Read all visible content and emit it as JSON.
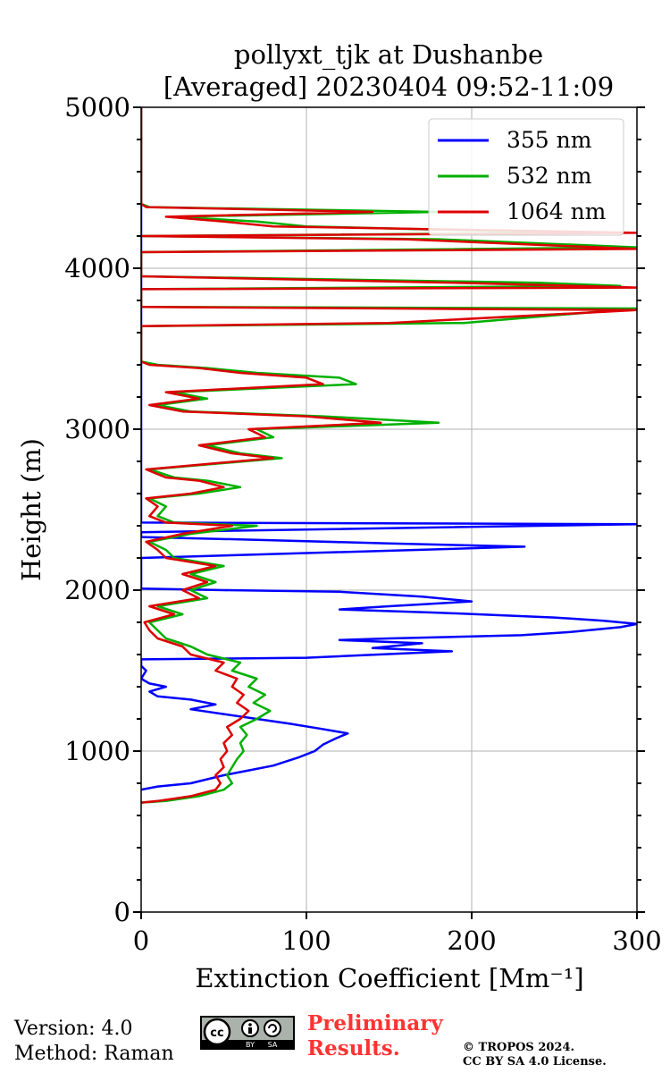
{
  "chart_data": {
    "type": "line",
    "title": "pollyxt_tjk at Dushanbe",
    "subtitle": "[Averaged] 20230404 09:52-11:09",
    "xlabel": "Extinction Coefficient [Mm⁻¹]",
    "ylabel": "Height (m)",
    "xlim": [
      0,
      300
    ],
    "ylim": [
      0,
      5000
    ],
    "xticks": [
      0,
      100,
      200,
      300
    ],
    "yticks": [
      0,
      1000,
      2000,
      3000,
      4000,
      5000
    ],
    "grid": true,
    "legend_position": "top-right",
    "series": [
      {
        "name": "355 nm",
        "color": "#0000ff",
        "points": [
          [
            0,
            760
          ],
          [
            10,
            780
          ],
          [
            30,
            800
          ],
          [
            50,
            850
          ],
          [
            65,
            880
          ],
          [
            80,
            910
          ],
          [
            95,
            960
          ],
          [
            105,
            1000
          ],
          [
            110,
            1040
          ],
          [
            118,
            1080
          ],
          [
            125,
            1110
          ],
          [
            108,
            1140
          ],
          [
            90,
            1170
          ],
          [
            70,
            1200
          ],
          [
            50,
            1230
          ],
          [
            30,
            1260
          ],
          [
            45,
            1290
          ],
          [
            30,
            1320
          ],
          [
            10,
            1340
          ],
          [
            5,
            1370
          ],
          [
            15,
            1400
          ],
          [
            5,
            1420
          ],
          [
            0,
            1450
          ],
          [
            3,
            1500
          ],
          [
            0,
            1530
          ],
          [
            0,
            1570
          ],
          [
            100,
            1580
          ],
          [
            188,
            1620
          ],
          [
            140,
            1640
          ],
          [
            170,
            1670
          ],
          [
            120,
            1690
          ],
          [
            150,
            1700
          ],
          [
            230,
            1720
          ],
          [
            260,
            1740
          ],
          [
            290,
            1770
          ],
          [
            300,
            1790
          ],
          [
            280,
            1810
          ],
          [
            250,
            1830
          ],
          [
            180,
            1860
          ],
          [
            120,
            1880
          ],
          [
            150,
            1900
          ],
          [
            200,
            1930
          ],
          [
            170,
            1960
          ],
          [
            120,
            1990
          ],
          [
            50,
            2000
          ],
          [
            0,
            2010
          ],
          [
            0,
            2200
          ],
          [
            232,
            2270
          ],
          [
            150,
            2290
          ],
          [
            80,
            2310
          ],
          [
            0,
            2330
          ],
          [
            0,
            2360
          ],
          [
            300,
            2410
          ],
          [
            0,
            2420
          ],
          [
            0,
            5000
          ]
        ]
      },
      {
        "name": "532 nm",
        "color": "#00b000",
        "points": [
          [
            0,
            680
          ],
          [
            15,
            690
          ],
          [
            35,
            720
          ],
          [
            50,
            760
          ],
          [
            55,
            800
          ],
          [
            52,
            850
          ],
          [
            55,
            900
          ],
          [
            58,
            950
          ],
          [
            62,
            1000
          ],
          [
            60,
            1050
          ],
          [
            64,
            1100
          ],
          [
            60,
            1150
          ],
          [
            70,
            1200
          ],
          [
            78,
            1250
          ],
          [
            68,
            1300
          ],
          [
            75,
            1350
          ],
          [
            65,
            1400
          ],
          [
            70,
            1450
          ],
          [
            55,
            1500
          ],
          [
            60,
            1550
          ],
          [
            40,
            1600
          ],
          [
            30,
            1650
          ],
          [
            15,
            1700
          ],
          [
            10,
            1750
          ],
          [
            5,
            1800
          ],
          [
            25,
            1850
          ],
          [
            10,
            1900
          ],
          [
            40,
            1950
          ],
          [
            30,
            2000
          ],
          [
            45,
            2050
          ],
          [
            30,
            2100
          ],
          [
            50,
            2150
          ],
          [
            20,
            2200
          ],
          [
            15,
            2250
          ],
          [
            5,
            2300
          ],
          [
            30,
            2350
          ],
          [
            70,
            2400
          ],
          [
            20,
            2420
          ],
          [
            10,
            2460
          ],
          [
            15,
            2520
          ],
          [
            5,
            2570
          ],
          [
            35,
            2600
          ],
          [
            60,
            2640
          ],
          [
            40,
            2680
          ],
          [
            20,
            2700
          ],
          [
            5,
            2750
          ],
          [
            85,
            2820
          ],
          [
            60,
            2850
          ],
          [
            40,
            2900
          ],
          [
            80,
            2950
          ],
          [
            70,
            3000
          ],
          [
            180,
            3040
          ],
          [
            110,
            3080
          ],
          [
            30,
            3110
          ],
          [
            10,
            3150
          ],
          [
            40,
            3190
          ],
          [
            20,
            3230
          ],
          [
            130,
            3280
          ],
          [
            120,
            3320
          ],
          [
            70,
            3350
          ],
          [
            40,
            3380
          ],
          [
            10,
            3400
          ],
          [
            0,
            3420
          ],
          [
            0,
            3640
          ],
          [
            195,
            3660
          ],
          [
            300,
            3750
          ],
          [
            0,
            3760
          ],
          [
            0,
            3870
          ],
          [
            290,
            3890
          ],
          [
            240,
            3910
          ],
          [
            0,
            3950
          ],
          [
            0,
            4100
          ],
          [
            300,
            4130
          ],
          [
            180,
            4180
          ],
          [
            0,
            4200
          ],
          [
            260,
            4220
          ],
          [
            100,
            4260
          ],
          [
            70,
            4290
          ],
          [
            20,
            4320
          ],
          [
            180,
            4350
          ],
          [
            5,
            4380
          ],
          [
            0,
            4400
          ],
          [
            0,
            5000
          ]
        ]
      },
      {
        "name": "1064 nm",
        "color": "#dd0000",
        "points": [
          [
            0,
            680
          ],
          [
            10,
            690
          ],
          [
            30,
            720
          ],
          [
            45,
            760
          ],
          [
            48,
            800
          ],
          [
            45,
            850
          ],
          [
            50,
            900
          ],
          [
            48,
            950
          ],
          [
            52,
            1000
          ],
          [
            50,
            1050
          ],
          [
            55,
            1100
          ],
          [
            52,
            1150
          ],
          [
            60,
            1200
          ],
          [
            65,
            1250
          ],
          [
            58,
            1300
          ],
          [
            62,
            1350
          ],
          [
            55,
            1400
          ],
          [
            58,
            1450
          ],
          [
            45,
            1500
          ],
          [
            50,
            1550
          ],
          [
            30,
            1600
          ],
          [
            25,
            1650
          ],
          [
            10,
            1700
          ],
          [
            5,
            1750
          ],
          [
            2,
            1800
          ],
          [
            20,
            1850
          ],
          [
            5,
            1900
          ],
          [
            35,
            1950
          ],
          [
            25,
            2000
          ],
          [
            40,
            2050
          ],
          [
            25,
            2100
          ],
          [
            45,
            2150
          ],
          [
            15,
            2200
          ],
          [
            10,
            2250
          ],
          [
            3,
            2300
          ],
          [
            25,
            2350
          ],
          [
            55,
            2400
          ],
          [
            15,
            2420
          ],
          [
            5,
            2460
          ],
          [
            10,
            2520
          ],
          [
            3,
            2570
          ],
          [
            30,
            2600
          ],
          [
            50,
            2640
          ],
          [
            35,
            2680
          ],
          [
            15,
            2700
          ],
          [
            3,
            2750
          ],
          [
            80,
            2820
          ],
          [
            55,
            2850
          ],
          [
            35,
            2900
          ],
          [
            75,
            2950
          ],
          [
            65,
            3000
          ],
          [
            145,
            3040
          ],
          [
            100,
            3080
          ],
          [
            25,
            3110
          ],
          [
            5,
            3150
          ],
          [
            35,
            3190
          ],
          [
            15,
            3230
          ],
          [
            110,
            3280
          ],
          [
            100,
            3320
          ],
          [
            60,
            3350
          ],
          [
            35,
            3380
          ],
          [
            5,
            3400
          ],
          [
            0,
            3420
          ],
          [
            0,
            3640
          ],
          [
            150,
            3660
          ],
          [
            300,
            3740
          ],
          [
            0,
            3760
          ],
          [
            0,
            3870
          ],
          [
            300,
            3880
          ],
          [
            190,
            3910
          ],
          [
            0,
            3950
          ],
          [
            0,
            4100
          ],
          [
            300,
            4120
          ],
          [
            160,
            4180
          ],
          [
            0,
            4200
          ],
          [
            300,
            4220
          ],
          [
            80,
            4260
          ],
          [
            50,
            4290
          ],
          [
            15,
            4320
          ],
          [
            140,
            4350
          ],
          [
            3,
            4380
          ],
          [
            0,
            4400
          ],
          [
            0,
            5000
          ]
        ]
      }
    ]
  },
  "footer": {
    "version": "Version: 4.0",
    "method": "Method: Raman",
    "preliminary_line1": "Preliminary",
    "preliminary_line2": "Results.",
    "copyright_line1": "© TROPOS 2024.",
    "copyright_line2": "CC BY SA 4.0 License.",
    "license_badge": {
      "cc": "cc",
      "by": "BY",
      "sa": "SA"
    }
  }
}
